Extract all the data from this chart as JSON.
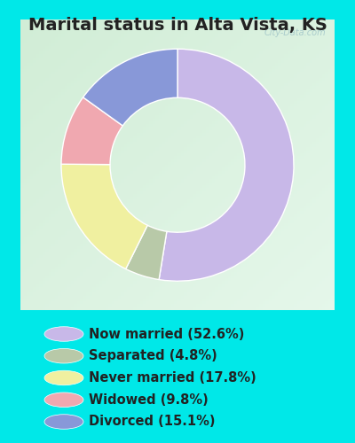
{
  "title": "Marital status in Alta Vista, KS",
  "slices": [
    {
      "label": "Now married (52.6%)",
      "value": 52.6,
      "color": "#c8b8e8"
    },
    {
      "label": "Separated (4.8%)",
      "value": 4.8,
      "color": "#b8c9a8"
    },
    {
      "label": "Never married (17.8%)",
      "value": 17.8,
      "color": "#f0f0a0"
    },
    {
      "label": "Widowed (9.8%)",
      "value": 9.8,
      "color": "#f0a8b0"
    },
    {
      "label": "Divorced (15.1%)",
      "value": 15.1,
      "color": "#8898d8"
    }
  ],
  "bg_cyan": "#00e8e8",
  "bg_chart_tl": "#d8f0e0",
  "bg_chart_br": "#e8f8f0",
  "title_fontsize": 14,
  "legend_fontsize": 10.5,
  "watermark": "City-Data.com",
  "start_angle": 90,
  "donut_width": 0.42
}
